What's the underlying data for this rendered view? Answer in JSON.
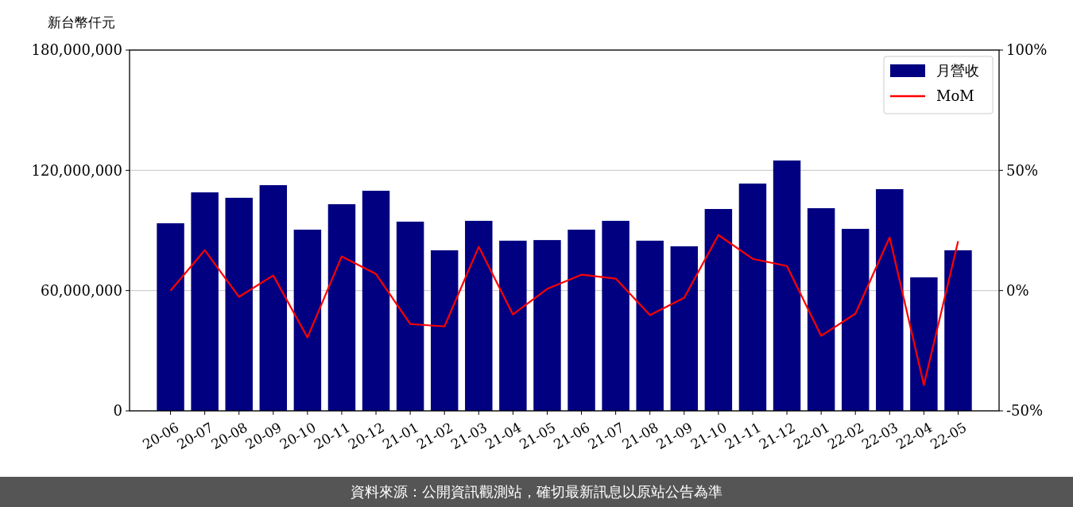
{
  "chart_data": {
    "type": "bar",
    "ylabel": "新台幣仟元",
    "categories": [
      "20-06",
      "20-07",
      "20-08",
      "20-09",
      "20-10",
      "20-11",
      "20-12",
      "21-01",
      "21-02",
      "21-03",
      "21-04",
      "21-05",
      "21-06",
      "21-07",
      "21-08",
      "21-09",
      "21-10",
      "21-11",
      "21-12",
      "22-01",
      "22-02",
      "22-03",
      "22-04",
      "22-05"
    ],
    "series": [
      {
        "name": "月營收",
        "color": "#000080",
        "values": [
          93600000,
          109000000,
          106300000,
          112600000,
          90400000,
          103100000,
          109800000,
          94400000,
          80100000,
          94800000,
          84900000,
          85200000,
          90400000,
          94800000,
          84900000,
          82100000,
          100700000,
          113400000,
          124900000,
          101100000,
          90800000,
          110600000,
          66600000,
          80100000
        ]
      },
      {
        "name": "MoM",
        "type": "line",
        "axis": "y2",
        "color": "#ff0000",
        "values": [
          0,
          16.8,
          -2.6,
          6.3,
          -19.5,
          14.2,
          6.9,
          -13.9,
          -14.9,
          18.2,
          -9.9,
          0.7,
          6.6,
          5.0,
          -10.2,
          -3.0,
          23.1,
          13.2,
          10.2,
          -18.8,
          -9.6,
          22.1,
          -39.3,
          20.5
        ]
      }
    ],
    "ylim": [
      0,
      180000000
    ],
    "yticks": [
      {
        "value": 0,
        "label": "0"
      },
      {
        "value": 60000000,
        "label": "60,000,000"
      },
      {
        "value": 120000000,
        "label": "120,000,000"
      },
      {
        "value": 180000000,
        "label": "180,000,000"
      }
    ],
    "y2lim": [
      -50,
      100
    ],
    "y2ticks": [
      {
        "value": -50,
        "label": "-50%"
      },
      {
        "value": 0,
        "label": "0%"
      },
      {
        "value": 50,
        "label": "50%"
      },
      {
        "value": 100,
        "label": "100%"
      }
    ],
    "grid": "y",
    "legend": "top right",
    "marker": "none",
    "line_style": "solid",
    "annotations": [
      "資料來源：公開資訊觀測站，確切最新訊息以原站公告為準"
    ]
  }
}
